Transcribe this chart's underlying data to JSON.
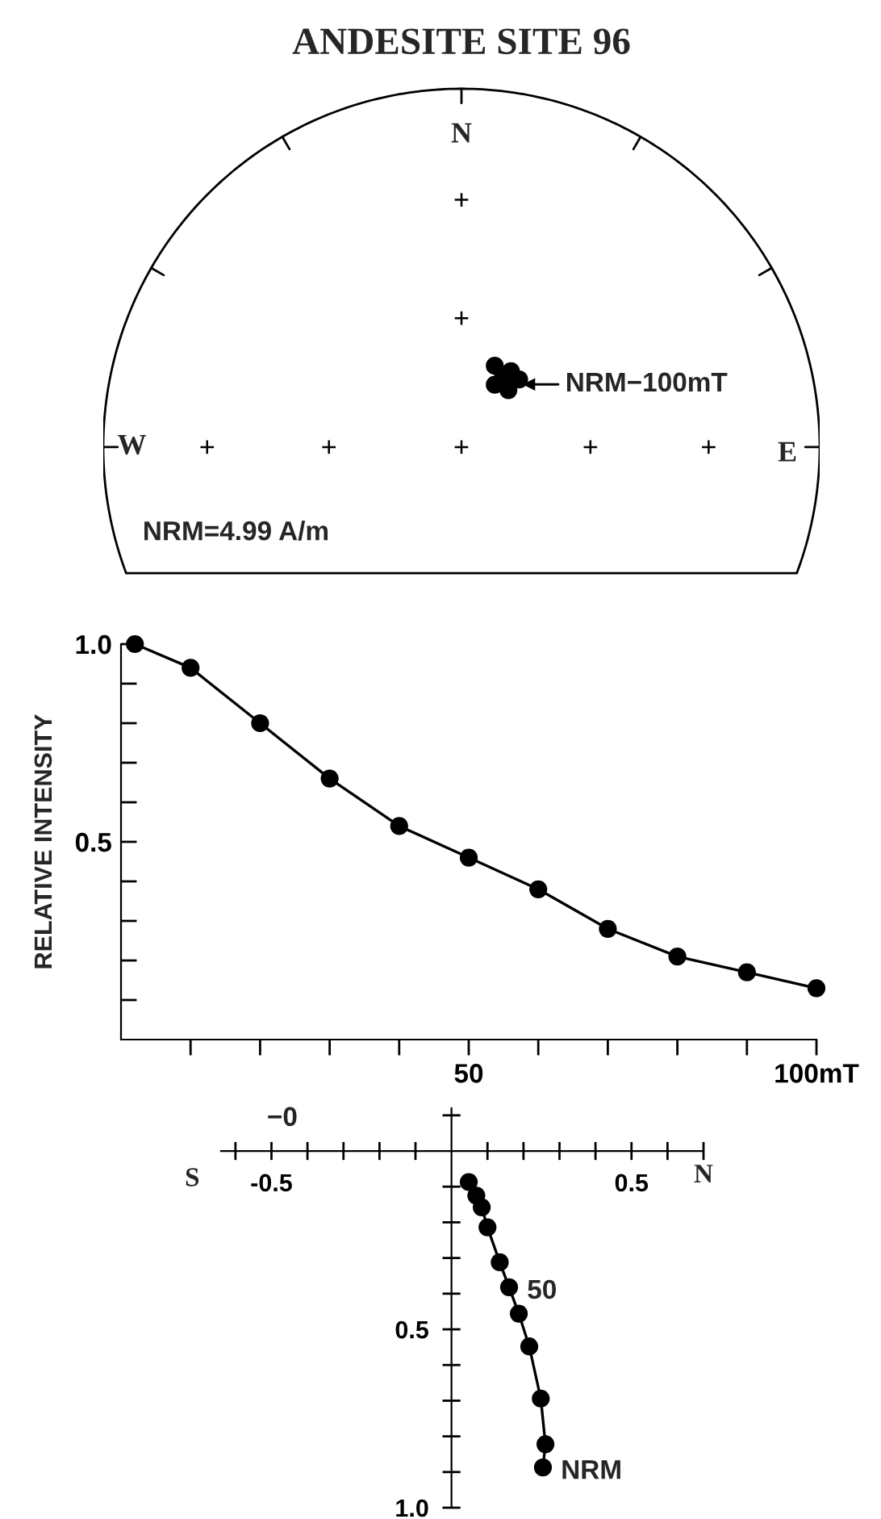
{
  "chart_data": [
    {
      "type": "other",
      "title": "ANDESITE SITE 96",
      "annotations": [
        "N",
        "W",
        "E",
        "NRM−100mT",
        "NRM=4.99 A/m"
      ]
    },
    {
      "type": "line",
      "ylabel": "RELATIVE INTENSITY",
      "color": "#000000",
      "marker": "circle",
      "line_style": "solid",
      "grid": false,
      "x": [
        2,
        10,
        20,
        30,
        40,
        50,
        60,
        70,
        80,
        90,
        100
      ],
      "values": [
        1.0,
        0.94,
        0.8,
        0.66,
        0.54,
        0.46,
        0.38,
        0.28,
        0.21,
        0.17,
        0.13
      ],
      "xlim": [
        0,
        100
      ],
      "ylim": [
        0,
        1.0
      ],
      "xticks": [
        {
          "value": 10,
          "label": null
        },
        {
          "value": 20,
          "label": null
        },
        {
          "value": 30,
          "label": null
        },
        {
          "value": 40,
          "label": null
        },
        {
          "value": 50,
          "label": "50"
        },
        {
          "value": 60,
          "label": null
        },
        {
          "value": 70,
          "label": null
        },
        {
          "value": 80,
          "label": null
        },
        {
          "value": 90,
          "label": null
        },
        {
          "value": 100,
          "label": "100mT"
        }
      ],
      "yticks": [
        {
          "value": 0.1,
          "label": null
        },
        {
          "value": 0.2,
          "label": null
        },
        {
          "value": 0.3,
          "label": null
        },
        {
          "value": 0.4,
          "label": null
        },
        {
          "value": 0.5,
          "label": "0.5"
        },
        {
          "value": 0.6,
          "label": null
        },
        {
          "value": 0.7,
          "label": null
        },
        {
          "value": 0.8,
          "label": null
        },
        {
          "value": 0.9,
          "label": null
        },
        {
          "value": 1.0,
          "label": "1.0"
        }
      ]
    },
    {
      "type": "line",
      "color": "#000000",
      "marker": "circle",
      "line_style": "solid",
      "grid": false,
      "x": [
        0.254,
        0.261,
        0.248,
        0.216,
        0.187,
        0.16,
        0.134,
        0.1,
        0.084,
        0.069,
        0.048
      ],
      "values": [
        0.887,
        0.822,
        0.694,
        0.548,
        0.456,
        0.382,
        0.312,
        0.214,
        0.158,
        0.125,
        0.087
      ],
      "xlim": [
        -0.64,
        0.7
      ],
      "ylim": [
        1.0,
        -0.12
      ],
      "xticks": [
        {
          "value": -0.6,
          "label": null
        },
        {
          "value": -0.5,
          "label": "-0.5"
        },
        {
          "value": -0.4,
          "label": null
        },
        {
          "value": -0.3,
          "label": null
        },
        {
          "value": -0.2,
          "label": null
        },
        {
          "value": -0.1,
          "label": null
        },
        {
          "value": 0.1,
          "label": null
        },
        {
          "value": 0.2,
          "label": null
        },
        {
          "value": 0.3,
          "label": null
        },
        {
          "value": 0.4,
          "label": null
        },
        {
          "value": 0.5,
          "label": "0.5"
        },
        {
          "value": 0.6,
          "label": null
        },
        {
          "value": 0.7,
          "label": null
        }
      ],
      "yticks": [
        {
          "value": -0.1,
          "label": null
        },
        {
          "value": 0.1,
          "label": null
        },
        {
          "value": 0.2,
          "label": null
        },
        {
          "value": 0.3,
          "label": null
        },
        {
          "value": 0.4,
          "label": null
        },
        {
          "value": 0.5,
          "label": "0.5"
        },
        {
          "value": 0.6,
          "label": null
        },
        {
          "value": 0.7,
          "label": null
        },
        {
          "value": 0.8,
          "label": null
        },
        {
          "value": 0.9,
          "label": null
        },
        {
          "value": 1.0,
          "label": "1.0"
        }
      ],
      "annotations": [
        "−0",
        "S",
        "N",
        {
          "text": "50",
          "x": 0.16,
          "y": 0.382
        },
        {
          "text": "NRM",
          "x": 0.254,
          "y": 0.887
        }
      ]
    }
  ]
}
